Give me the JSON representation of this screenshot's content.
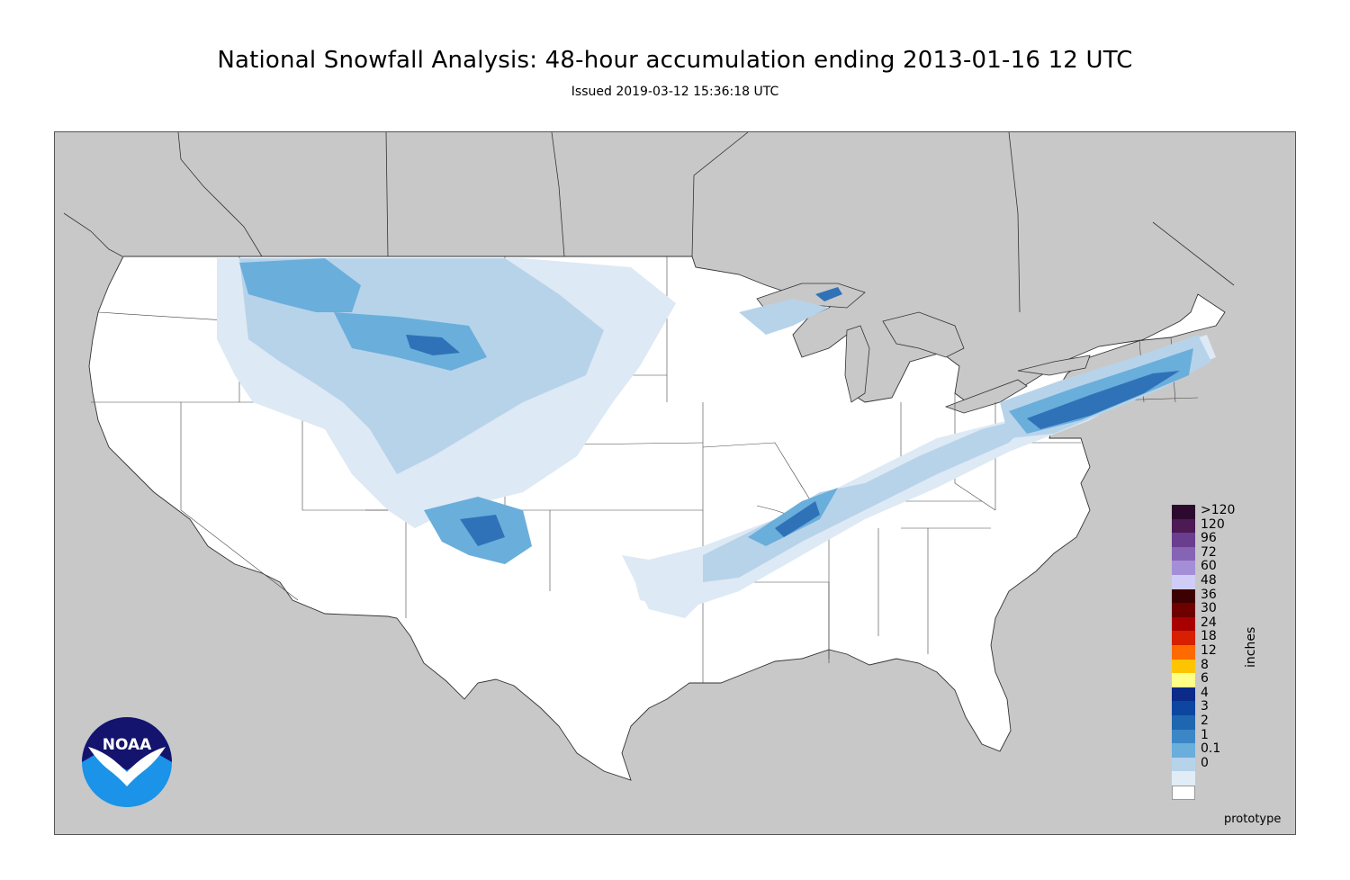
{
  "title": "National Snowfall Analysis: 48-hour accumulation ending 2013-01-16 12 UTC",
  "subtitle": "Issued 2019-03-12 15:36:18 UTC",
  "legend": {
    "unit": "inches",
    "entries": [
      {
        "label": ">120",
        "color": "#2d0a2d"
      },
      {
        "label": "120",
        "color": "#4c1a55"
      },
      {
        "label": "96",
        "color": "#6b3d8f"
      },
      {
        "label": "72",
        "color": "#8563b5"
      },
      {
        "label": "60",
        "color": "#a58ed8"
      },
      {
        "label": "48",
        "color": "#d0ccf8"
      },
      {
        "label": "36",
        "color": "#3c0000"
      },
      {
        "label": "30",
        "color": "#6e0000"
      },
      {
        "label": "24",
        "color": "#a80000"
      },
      {
        "label": "18",
        "color": "#d62000"
      },
      {
        "label": "12",
        "color": "#ff6a00"
      },
      {
        "label": "8",
        "color": "#ffc400"
      },
      {
        "label": "6",
        "color": "#ffff88"
      },
      {
        "label": "4",
        "color": "#0b2a8a"
      },
      {
        "label": "3",
        "color": "#0c46a0"
      },
      {
        "label": "2",
        "color": "#1f66b0"
      },
      {
        "label": "1",
        "color": "#3b87c6"
      },
      {
        "label": "0.1",
        "color": "#6aaedb"
      },
      {
        "label": "0",
        "color": "#b7d3ea"
      },
      {
        "label": "",
        "color": "#e0ecf6"
      },
      {
        "label": "",
        "color": "#ffffff"
      }
    ]
  },
  "footer_note": "prototype",
  "logo": {
    "text": "NOAA",
    "dark": "#14146e",
    "light": "#1a93e8"
  },
  "map_colors": {
    "land_outside": "#c8c8c8",
    "water": "#c8c8c8",
    "us_land": "#ffffff",
    "snow_light": "#dde9f4",
    "snow_mid": "#b7d3ea",
    "snow_med": "#6aaedb",
    "snow_heavy": "#2f72b8",
    "snow_max": "#0b2a8a"
  }
}
